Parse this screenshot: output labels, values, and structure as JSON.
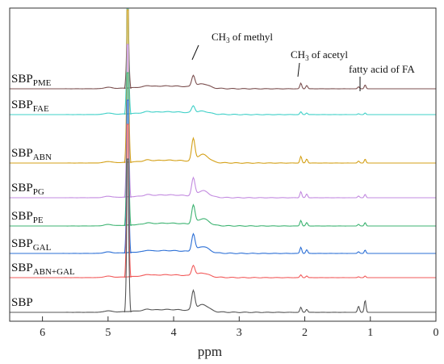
{
  "chart_data": {
    "type": "line",
    "title": "",
    "xlabel": "ppm",
    "ylabel": "",
    "x_reversed": true,
    "xlim": [
      0,
      6.5
    ],
    "x_ticks": [
      {
        "value": 6,
        "label": "6"
      },
      {
        "value": 5,
        "label": "5"
      },
      {
        "value": 4,
        "label": "4"
      },
      {
        "value": 3,
        "label": "3"
      },
      {
        "value": 2,
        "label": "2"
      },
      {
        "value": 1,
        "label": "1"
      },
      {
        "value": 0,
        "label": "0"
      }
    ],
    "grid": false,
    "series": [
      {
        "name": "SBP_PME",
        "label_main": "SBP",
        "label_sub": "PME",
        "color": "#7b4f4f",
        "peak_3_7": 1.0,
        "peak_2_05": 0.5,
        "peak_1_1": 0.35
      },
      {
        "name": "SBP_FAE",
        "label_main": "SBP",
        "label_sub": "FAE",
        "color": "#3fd0c8",
        "peak_3_7": 0.6,
        "peak_2_05": 0.25,
        "peak_1_1": 0.15
      },
      {
        "name": "SBP_ABN",
        "label_main": "SBP",
        "label_sub": "ABN",
        "color": "#d4a017",
        "peak_3_7": 1.9,
        "peak_2_05": 0.6,
        "peak_1_1": 0.35
      },
      {
        "name": "SBP_PG",
        "label_main": "SBP",
        "label_sub": "PG",
        "color": "#c38be0",
        "peak_3_7": 1.5,
        "peak_2_05": 0.55,
        "peak_1_1": 0.3
      },
      {
        "name": "SBP_PE",
        "label_main": "SBP",
        "label_sub": "PE",
        "color": "#3cb371",
        "peak_3_7": 1.6,
        "peak_2_05": 0.5,
        "peak_1_1": 0.3
      },
      {
        "name": "SBP_GAL",
        "label_main": "SBP",
        "label_sub": "GAL",
        "color": "#2b6fd6",
        "peak_3_7": 1.5,
        "peak_2_05": 0.55,
        "peak_1_1": 0.3
      },
      {
        "name": "SBP_ABN+GAL",
        "label_main": "SBP",
        "label_sub": "ABN+GAL",
        "color": "#f25a5a",
        "peak_3_7": 0.9,
        "peak_2_05": 0.25,
        "peak_1_1": 0.15
      },
      {
        "name": "SBP",
        "label_main": "SBP",
        "label_sub": "",
        "color": "#555555",
        "peak_3_7": 1.7,
        "peak_2_05": 0.45,
        "peak_1_1": 1.1
      }
    ],
    "annotations": [
      {
        "id": "ch3-methyl",
        "text_main": "CH",
        "text_sub": "3",
        "text_rest": " of methyl",
        "x": 3.7
      },
      {
        "id": "ch3-acetyl",
        "text_main": "CH",
        "text_sub": "3",
        "text_rest": " of acetyl",
        "x": 2.05
      },
      {
        "id": "fatty-acid",
        "text_main": "fatty acid of FA",
        "text_sub": "",
        "text_rest": "",
        "x": 1.1
      }
    ],
    "water_peak_ppm": 4.7
  }
}
